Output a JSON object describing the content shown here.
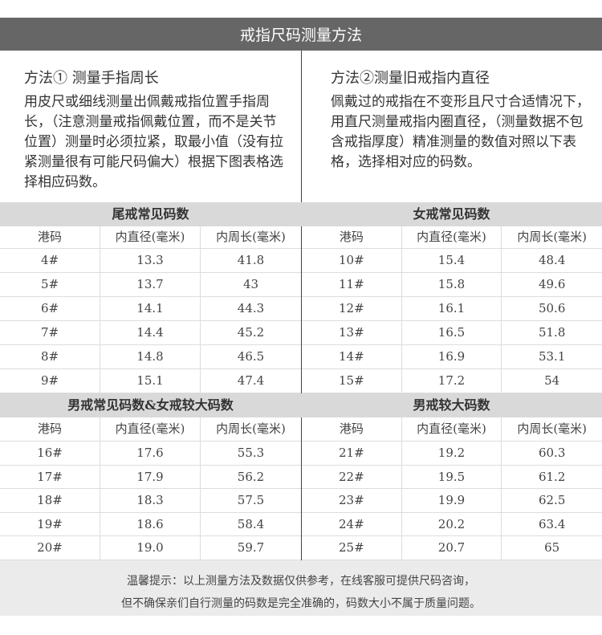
{
  "title": "戒指尺码测量方法",
  "method1": {
    "heading": "方法① 测量手指周长",
    "text": "用皮尺或细线测量出佩戴戒指位置手指周长，（注意测量戒指佩戴位置，而不是关节位置）测量时必须拉紧，取最小值（没有拉紧测量很有可能尺码偏大）根据下图表格选择相应码数。"
  },
  "method2": {
    "heading": "方法②测量旧戒指内直径",
    "text": "佩戴过的戒指在不变形且尺寸合适情况下，用直尺测量戒指内圈直径，（测量数据不包含戒指厚度）精准测量的数值对照以下表格，选择相对应的码数。"
  },
  "columns": [
    "港码",
    "内直径(毫米)",
    "内周长(毫米)"
  ],
  "tables": [
    {
      "title": "尾戒常见码数",
      "rows": [
        [
          "4#",
          "13.3",
          "41.8"
        ],
        [
          "5#",
          "13.7",
          "43"
        ],
        [
          "6#",
          "14.1",
          "44.3"
        ],
        [
          "7#",
          "14.4",
          "45.2"
        ],
        [
          "8#",
          "14.8",
          "46.5"
        ],
        [
          "9#",
          "15.1",
          "47.4"
        ]
      ]
    },
    {
      "title": "女戒常见码数",
      "rows": [
        [
          "10#",
          "15.4",
          "48.4"
        ],
        [
          "11#",
          "15.8",
          "49.6"
        ],
        [
          "12#",
          "16.1",
          "50.6"
        ],
        [
          "13#",
          "16.5",
          "51.8"
        ],
        [
          "14#",
          "16.9",
          "53.1"
        ],
        [
          "15#",
          "17.2",
          "54"
        ]
      ]
    },
    {
      "title": "男戒常见码数&女戒较大码数",
      "rows": [
        [
          "16#",
          "17.6",
          "55.3"
        ],
        [
          "17#",
          "17.9",
          "56.2"
        ],
        [
          "18#",
          "18.3",
          "57.5"
        ],
        [
          "19#",
          "18.6",
          "58.4"
        ],
        [
          "20#",
          "19.0",
          "59.7"
        ]
      ]
    },
    {
      "title": "男戒较大码数",
      "rows": [
        [
          "21#",
          "19.2",
          "60.3"
        ],
        [
          "22#",
          "19.5",
          "61.2"
        ],
        [
          "23#",
          "19.9",
          "62.5"
        ],
        [
          "24#",
          "20.2",
          "63.4"
        ],
        [
          "25#",
          "20.7",
          "65"
        ]
      ]
    }
  ],
  "footer": {
    "line1": "温馨提示：以上测量方法及数据仅供参考，在线客服可提供尺码咨询，",
    "line2": "但不确保亲们自行测量的码数是完全准确的，码数大小不属于质量问题。"
  }
}
